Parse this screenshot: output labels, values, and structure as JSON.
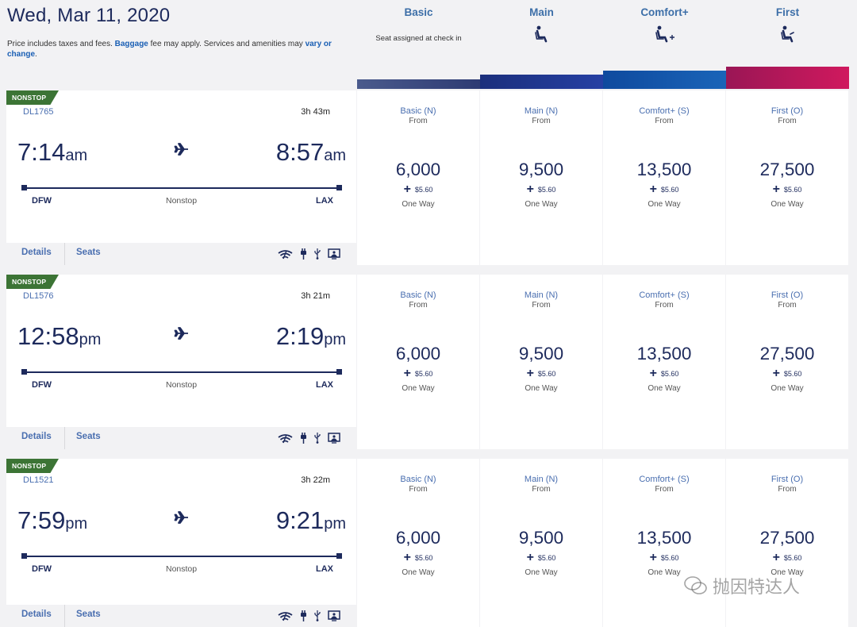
{
  "header": {
    "date": "Wed, Mar 11, 2020",
    "notice_prefix": "Price includes taxes and fees.",
    "baggage_link": "Baggage",
    "notice_mid": "fee may apply. Services and amenities may",
    "vary_link": "vary or change",
    "notice_end": "."
  },
  "cabins": [
    {
      "name": "Basic",
      "sub": "Seat assigned at check in",
      "color": "#3d4f86",
      "icon": "none"
    },
    {
      "name": "Main",
      "sub": "",
      "color": "#1d3a8c",
      "icon": "seat-icon"
    },
    {
      "name": "Comfort+",
      "sub": "",
      "color": "#1957a6",
      "icon": "seat-plus-icon"
    },
    {
      "name": "First",
      "sub": "",
      "color": "#b0185c",
      "icon": "seat-first-icon"
    }
  ],
  "flights": [
    {
      "tag": "NONSTOP",
      "number": "DL1765",
      "duration": "3h 43m",
      "dep_time": "7:14",
      "dep_ampm": "am",
      "arr_time": "8:57",
      "arr_ampm": "am",
      "from": "DFW",
      "to": "LAX",
      "stops": "Nonstop",
      "details": "Details",
      "seats": "Seats",
      "fares": [
        {
          "class": "Basic (N)",
          "from": "From",
          "miles": "6,000",
          "tax": "$5.60",
          "way": "One Way"
        },
        {
          "class": "Main (N)",
          "from": "From",
          "miles": "9,500",
          "tax": "$5.60",
          "way": "One Way"
        },
        {
          "class": "Comfort+ (S)",
          "from": "From",
          "miles": "13,500",
          "tax": "$5.60",
          "way": "One Way"
        },
        {
          "class": "First (O)",
          "from": "From",
          "miles": "27,500",
          "tax": "$5.60",
          "way": "One Way"
        }
      ]
    },
    {
      "tag": "NONSTOP",
      "number": "DL1576",
      "duration": "3h 21m",
      "dep_time": "12:58",
      "dep_ampm": "pm",
      "arr_time": "2:19",
      "arr_ampm": "pm",
      "from": "DFW",
      "to": "LAX",
      "stops": "Nonstop",
      "details": "Details",
      "seats": "Seats",
      "fares": [
        {
          "class": "Basic (N)",
          "from": "From",
          "miles": "6,000",
          "tax": "$5.60",
          "way": "One Way"
        },
        {
          "class": "Main (N)",
          "from": "From",
          "miles": "9,500",
          "tax": "$5.60",
          "way": "One Way"
        },
        {
          "class": "Comfort+ (S)",
          "from": "From",
          "miles": "13,500",
          "tax": "$5.60",
          "way": "One Way"
        },
        {
          "class": "First (O)",
          "from": "From",
          "miles": "27,500",
          "tax": "$5.60",
          "way": "One Way"
        }
      ]
    },
    {
      "tag": "NONSTOP",
      "number": "DL1521",
      "duration": "3h 22m",
      "dep_time": "7:59",
      "dep_ampm": "pm",
      "arr_time": "9:21",
      "arr_ampm": "pm",
      "from": "DFW",
      "to": "LAX",
      "stops": "Nonstop",
      "details": "Details",
      "seats": "Seats",
      "fares": [
        {
          "class": "Basic (N)",
          "from": "From",
          "miles": "6,000",
          "tax": "$5.60",
          "way": "One Way"
        },
        {
          "class": "Main (N)",
          "from": "From",
          "miles": "9,500",
          "tax": "$5.60",
          "way": "One Way"
        },
        {
          "class": "Comfort+ (S)",
          "from": "From",
          "miles": "13,500",
          "tax": "$5.60",
          "way": "One Way"
        },
        {
          "class": "First (O)",
          "from": "From",
          "miles": "27,500",
          "tax": "$5.60",
          "way": "One Way"
        }
      ]
    }
  ],
  "amenity_icons": [
    "wifi-icon",
    "power-icon",
    "usb-icon",
    "entertainment-icon"
  ],
  "watermark": "抛因特达人"
}
